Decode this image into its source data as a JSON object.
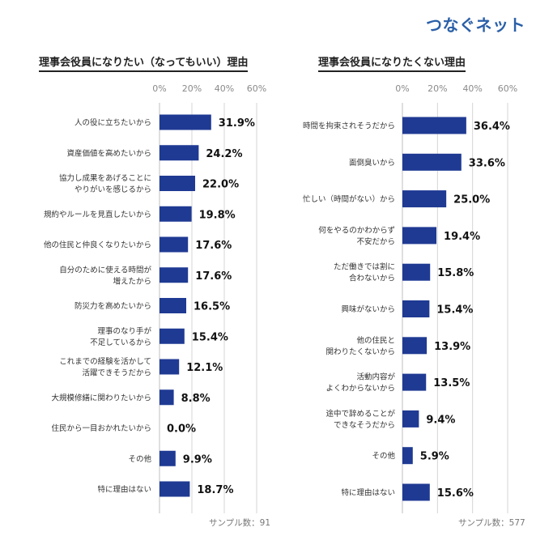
{
  "brand": {
    "logo_text": "つなぐネット",
    "logo_color": "#2a5fa8"
  },
  "colors": {
    "bar": "#1f3a93",
    "grid": "#d4d4d4",
    "value": "#111111",
    "tick": "#8a8a8a"
  },
  "chart_data": [
    {
      "type": "bar",
      "orientation": "horizontal",
      "title": "理事会役員になりたい（なってもいい）理由",
      "xlabel": "",
      "ylabel": "",
      "xlim": [
        0,
        60
      ],
      "ticks": [
        "0%",
        "20%",
        "40%",
        "60%"
      ],
      "tick_values": [
        0,
        20,
        40,
        60
      ],
      "categories": [
        "人の役に立ちたいから",
        "資産価値を高めたいから",
        "協力し成果をあげることに\nやりがいを感じるから",
        "規約やルールを見直したいから",
        "他の住民と仲良くなりたいから",
        "自分のために使える時間が\n増えたから",
        "防災力を高めたいから",
        "理事のなり手が\n不足しているから",
        "これまでの経験を活かして\n活躍できそうだから",
        "大規模修繕に関わりたいから",
        "住民から一目おかれたいから",
        "その他",
        "特に理由はない"
      ],
      "values": [
        31.9,
        24.2,
        22.0,
        19.8,
        17.6,
        17.6,
        16.5,
        15.4,
        12.1,
        8.8,
        0.0,
        9.9,
        18.7
      ],
      "labels": [
        "31.9%",
        "24.2%",
        "22.0%",
        "19.8%",
        "17.6%",
        "17.6%",
        "16.5%",
        "15.4%",
        "12.1%",
        "8.8%",
        "0.0%",
        "9.9%",
        "18.7%"
      ],
      "sample_text": "サンプル数：91"
    },
    {
      "type": "bar",
      "orientation": "horizontal",
      "title": "理事会役員になりたくない理由",
      "xlabel": "",
      "ylabel": "",
      "xlim": [
        0,
        60
      ],
      "ticks": [
        "0%",
        "20%",
        "40%",
        "60%"
      ],
      "tick_values": [
        0,
        20,
        40,
        60
      ],
      "categories": [
        "時間を拘束されそうだから",
        "面倒臭いから",
        "忙しい（時間がない）から",
        "何をやるのかわからず\n不安だから",
        "ただ働きでは割に\n合わないから",
        "興味がないから",
        "他の住民と\n関わりたくないから",
        "活動内容が\nよくわからないから",
        "途中で辞めることが\nできなそうだから",
        "その他",
        "特に理由はない"
      ],
      "values": [
        36.4,
        33.6,
        25.0,
        19.4,
        15.8,
        15.4,
        13.9,
        13.5,
        9.4,
        5.9,
        15.6
      ],
      "labels": [
        "36.4%",
        "33.6%",
        "25.0%",
        "19.4%",
        "15.8%",
        "15.4%",
        "13.9%",
        "13.5%",
        "9.4%",
        "5.9%",
        "15.6%"
      ],
      "sample_text": "サンプル数：577"
    }
  ]
}
